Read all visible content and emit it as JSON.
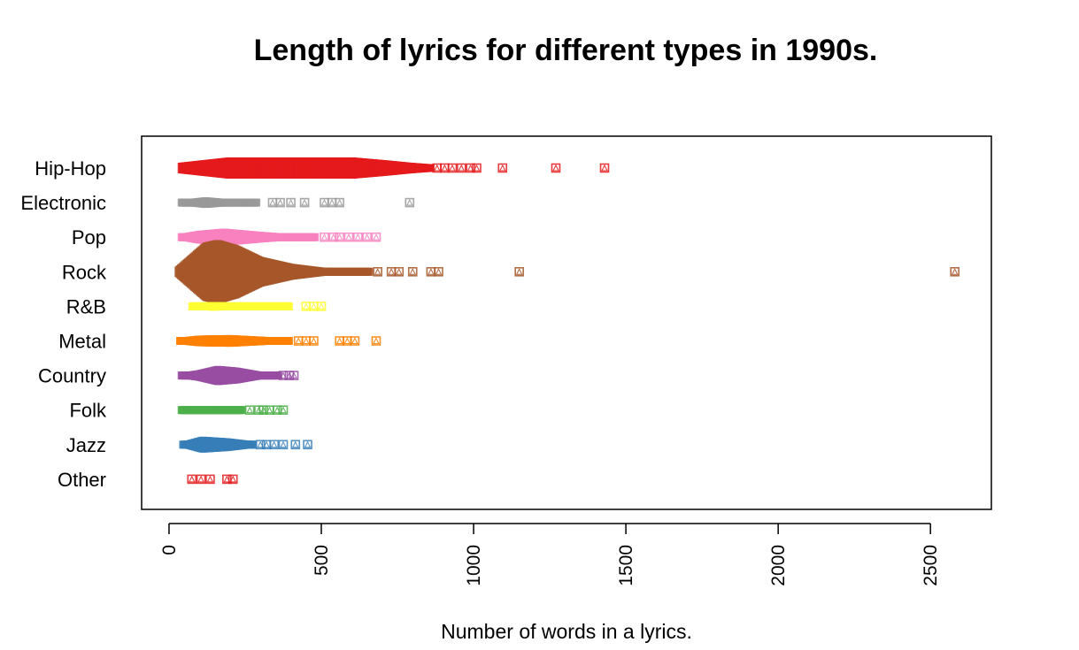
{
  "chart_data": {
    "type": "beeswarm",
    "title": "Length of lyrics for different types in 1990s.",
    "xlabel": "Number of words in a lyrics.",
    "ylabel": "",
    "xlim": [
      -90,
      2700
    ],
    "x_ticks": [
      0,
      500,
      1000,
      1500,
      2000,
      2500
    ],
    "x_tick_labels": [
      "0",
      "500",
      "1000",
      "1500",
      "2000",
      "2500"
    ],
    "x_tick_label_rotation": "vertical",
    "categories": [
      "Hip-Hop",
      "Electronic",
      "Pop",
      "Rock",
      "R&B",
      "Metal",
      "Country",
      "Folk",
      "Jazz",
      "Other"
    ],
    "marker": "square-with-triangle",
    "series": [
      {
        "name": "Hip-Hop",
        "color": "#E41A1C",
        "dense": [
          [
            40,
            1
          ],
          [
            200,
            2
          ],
          [
            400,
            2
          ],
          [
            600,
            2
          ],
          [
            700,
            1.5
          ],
          [
            790,
            1
          ],
          [
            860,
            0.7
          ]
        ],
        "outliers": [
          880,
          905,
          930,
          960,
          990,
          1010,
          1095,
          1270,
          1430
        ]
      },
      {
        "name": "Electronic",
        "color": "#999999",
        "dense": [
          [
            40,
            0.5
          ],
          [
            120,
            1
          ],
          [
            200,
            0.6
          ],
          [
            290,
            0.4
          ]
        ],
        "outliers": [
          340,
          365,
          400,
          445,
          510,
          535,
          560,
          790
        ]
      },
      {
        "name": "Pop",
        "color": "#F781BF",
        "dense": [
          [
            40,
            0.6
          ],
          [
            100,
            1.2
          ],
          [
            180,
            1.6
          ],
          [
            300,
            1
          ],
          [
            420,
            0.5
          ],
          [
            480,
            0.3
          ]
        ],
        "outliers": [
          510,
          540,
          560,
          590,
          620,
          650,
          680
        ]
      },
      {
        "name": "Rock",
        "color": "#A65628",
        "dense": [
          [
            30,
            1
          ],
          [
            80,
            3.5
          ],
          [
            120,
            5.5
          ],
          [
            160,
            6
          ],
          [
            220,
            5
          ],
          [
            300,
            2.8
          ],
          [
            400,
            1.5
          ],
          [
            500,
            0.8
          ],
          [
            660,
            0.4
          ]
        ],
        "outliers": [
          685,
          730,
          755,
          800,
          860,
          885,
          1150,
          2580
        ]
      },
      {
        "name": "R&B",
        "color": "#FFFF33",
        "dense": [
          [
            75,
            0.6
          ],
          [
            140,
            0.8
          ],
          [
            250,
            0.7
          ],
          [
            330,
            0.5
          ],
          [
            395,
            0.4
          ]
        ],
        "outliers": [
          450,
          475,
          500
        ]
      },
      {
        "name": "Metal",
        "color": "#FF7F00",
        "dense": [
          [
            35,
            0.6
          ],
          [
            100,
            1
          ],
          [
            200,
            1.1
          ],
          [
            300,
            0.8
          ],
          [
            395,
            0.5
          ]
        ],
        "outliers": [
          425,
          450,
          475,
          560,
          585,
          610,
          680
        ]
      },
      {
        "name": "Country",
        "color": "#984EA3",
        "dense": [
          [
            40,
            0.5
          ],
          [
            100,
            1
          ],
          [
            160,
            1.8
          ],
          [
            220,
            1.5
          ],
          [
            300,
            0.7
          ],
          [
            360,
            0.4
          ]
        ],
        "outliers": [
          375,
          395,
          410
        ]
      },
      {
        "name": "Folk",
        "color": "#4DAF4A",
        "dense": [
          [
            40,
            0.4
          ],
          [
            160,
            0.7
          ],
          [
            240,
            0.45
          ]
        ],
        "outliers": [
          265,
          295,
          310,
          330,
          355,
          375
        ]
      },
      {
        "name": "Jazz",
        "color": "#377EB8",
        "dense": [
          [
            45,
            0.5
          ],
          [
            110,
            1.5
          ],
          [
            190,
            1.2
          ],
          [
            280,
            0.6
          ]
        ],
        "outliers": [
          300,
          320,
          345,
          375,
          415,
          455
        ]
      },
      {
        "name": "Other",
        "color": "#E41A1C",
        "dense": [],
        "outliers": [
          75,
          105,
          135,
          190,
          210
        ]
      }
    ]
  }
}
